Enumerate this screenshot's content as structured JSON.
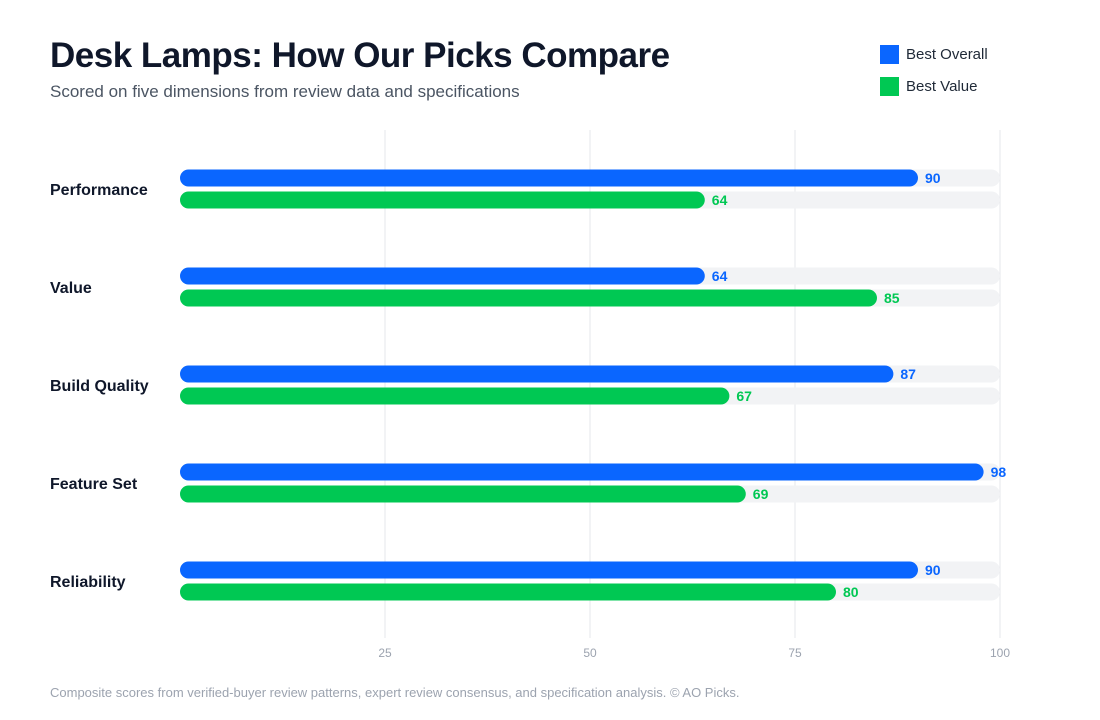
{
  "header": {
    "title": "Desk Lamps: How Our Picks Compare",
    "subtitle": "Scored on five dimensions from review data and specifications"
  },
  "legend": [
    {
      "label": "Best Overall",
      "color": "#0a66ff"
    },
    {
      "label": "Best Value",
      "color": "#00c853"
    }
  ],
  "chart_data": {
    "type": "bar",
    "orientation": "horizontal",
    "categories": [
      "Performance",
      "Value",
      "Build Quality",
      "Feature Set",
      "Reliability"
    ],
    "series": [
      {
        "name": "Best Overall",
        "color": "#0a66ff",
        "values": [
          90,
          64,
          87,
          98,
          90
        ]
      },
      {
        "name": "Best Value",
        "color": "#00c853",
        "values": [
          64,
          85,
          67,
          69,
          80
        ]
      }
    ],
    "xlim": [
      0,
      100
    ],
    "xticks": [
      25,
      50,
      75,
      100
    ],
    "grid": true,
    "legend_position": "top-right",
    "track_color": "#f2f3f5",
    "grid_color": "#e5e7eb"
  },
  "footer": {
    "note": "Composite scores from verified-buyer review patterns, expert review consensus, and specification analysis. © AO Picks."
  }
}
